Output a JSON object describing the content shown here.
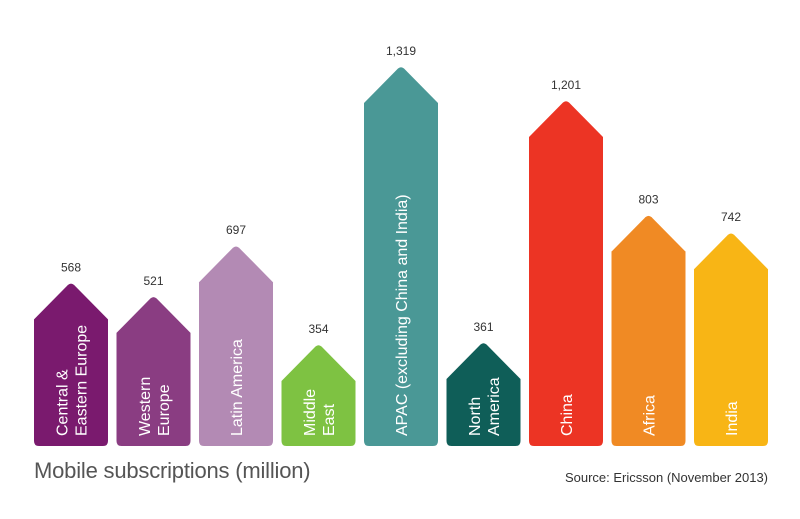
{
  "chart_data": {
    "type": "bar",
    "title": "Mobile subscriptions (million)",
    "source": "Source: Ericsson (November 2013)",
    "categories": [
      [
        "Central &",
        "Eastern Europe"
      ],
      [
        "Western",
        "Europe"
      ],
      [
        "Latin America"
      ],
      [
        "Middle",
        "East"
      ],
      [
        "APAC (excluding China and India)"
      ],
      [
        "North",
        "America"
      ],
      [
        "China"
      ],
      [
        "Africa"
      ],
      [
        "India"
      ]
    ],
    "values": [
      568,
      521,
      697,
      354,
      1319,
      361,
      1201,
      803,
      742
    ],
    "value_labels": [
      "568",
      "521",
      "697",
      "354",
      "1,319",
      "361",
      "1,201",
      "803",
      "742"
    ],
    "colors": [
      "#7a1a6e",
      "#8a3d82",
      "#b38ab4",
      "#7ec242",
      "#4a9896",
      "#0f5e58",
      "#ec3424",
      "#f08a24",
      "#f8b515"
    ],
    "ylim": [
      0,
      1319
    ],
    "grid": false,
    "legend": "none"
  }
}
